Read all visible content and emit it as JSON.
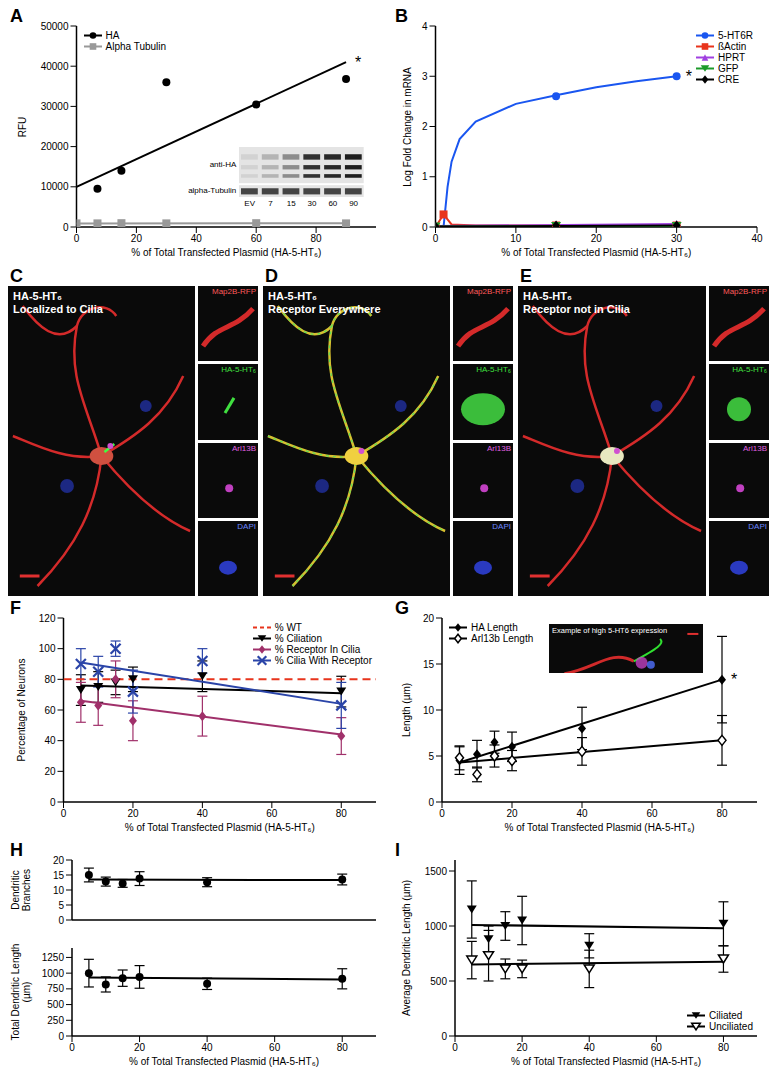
{
  "chart_data": [
    {
      "panel": "A",
      "type": "scatter",
      "xlabel": "% of Total Transfected Plasmid (HA-5-HT₆)",
      "ylabel": "RFU",
      "xlim": [
        0,
        100
      ],
      "xticks": [
        0,
        20,
        40,
        60,
        80
      ],
      "ylim": [
        0,
        50000
      ],
      "yticks": [
        0,
        10000,
        20000,
        30000,
        40000,
        50000
      ],
      "legend": "upper left",
      "series": [
        {
          "name": "HA",
          "color": "#000000",
          "marker": "circle",
          "x": [
            7,
            15,
            30,
            60,
            90
          ],
          "values": [
            9500,
            14000,
            36000,
            30500,
            36800
          ],
          "fit": {
            "x": [
              0,
              90
            ],
            "values": [
              10000,
              41000
            ]
          }
        },
        {
          "name": "Alpha Tubulin",
          "color": "#999999",
          "marker": "square",
          "x": [
            0,
            7,
            15,
            30,
            60,
            90
          ],
          "values": [
            900,
            900,
            950,
            900,
            950,
            900
          ],
          "fit": {
            "x": [
              0,
              90
            ],
            "values": [
              900,
              920
            ]
          }
        }
      ],
      "annotations": [
        {
          "text": "*",
          "x": 90,
          "y": 41000
        }
      ],
      "inset": {
        "type": "image",
        "rows": [
          "anti-HA",
          "alpha-Tubulin"
        ],
        "lanes": [
          "EV",
          "7",
          "15",
          "30",
          "60",
          "90"
        ]
      }
    },
    {
      "panel": "B",
      "type": "scatter",
      "xlabel": "% of Total Transfected Plasmid (HA-5-HT₆)",
      "ylabel": "Log Fold Change in mRNA",
      "xlim": [
        0,
        40
      ],
      "xticks": [
        0,
        10,
        20,
        30,
        40
      ],
      "ylim": [
        0,
        4
      ],
      "yticks": [
        0,
        1,
        2,
        3,
        4
      ],
      "legend": "upper right",
      "series": [
        {
          "name": "5-HT6R",
          "color": "#1a56f0",
          "marker": "circle",
          "x": [
            15,
            30
          ],
          "values": [
            2.6,
            3.0
          ],
          "fit": {
            "x": [
              1,
              1.5,
              2,
              3,
              5,
              10,
              15,
              20,
              25,
              30
            ],
            "values": [
              0,
              0.8,
              1.3,
              1.75,
              2.1,
              2.45,
              2.62,
              2.78,
              2.9,
              3.0
            ]
          }
        },
        {
          "name": "ßActin",
          "color": "#e8341c",
          "marker": "square",
          "x": [
            0,
            1,
            15,
            30
          ],
          "values": [
            0,
            0.25,
            0.03,
            0.03
          ],
          "fit": {
            "x": [
              0,
              1,
              2,
              5,
              30
            ],
            "values": [
              0,
              0.25,
              0.05,
              0.03,
              0.03
            ]
          }
        },
        {
          "name": "HPRT",
          "color": "#a040e0",
          "marker": "triangle",
          "x": [
            0,
            15,
            30
          ],
          "values": [
            0.02,
            0.05,
            0.06
          ],
          "fit": {
            "x": [
              0,
              30
            ],
            "values": [
              0.02,
              0.06
            ]
          }
        },
        {
          "name": "GFP",
          "color": "#1c9a2a",
          "marker": "triangle_down",
          "x": [
            0,
            15,
            30
          ],
          "values": [
            0.01,
            0.02,
            0.02
          ],
          "fit": {
            "x": [
              0,
              30
            ],
            "values": [
              0.01,
              0.02
            ]
          }
        },
        {
          "name": "CRE",
          "color": "#000000",
          "marker": "diamond",
          "x": [
            0,
            15,
            30
          ],
          "values": [
            0.01,
            0.03,
            0.03
          ],
          "fit": {
            "x": [
              0,
              30
            ],
            "values": [
              0.01,
              0.03
            ]
          }
        }
      ],
      "annotations": [
        {
          "text": "*",
          "x": 30,
          "y": 3.0
        }
      ]
    },
    {
      "panel": "C",
      "type": "image",
      "title": [
        "HA-5-HT₆",
        "Localized to Cilia"
      ],
      "channels": [
        "Map2B-RFP",
        "HA-5-HT₆",
        "Arl13B",
        "DAPI"
      ]
    },
    {
      "panel": "D",
      "type": "image",
      "title": [
        "HA-5-HT₆",
        "Receptor Everywhere"
      ],
      "channels": [
        "Map2B-RFP",
        "HA-5-HT₆",
        "Arl13B",
        "DAPI"
      ]
    },
    {
      "panel": "E",
      "type": "image",
      "title": [
        "HA-5-HT₆",
        "Receptor not in Cilia"
      ],
      "channels": [
        "Map2B-RFP",
        "HA-5-HT₆",
        "Arl13B",
        "DAPI"
      ]
    },
    {
      "panel": "F",
      "type": "scatter",
      "xlabel": "% of Total Transfected Plasmid (HA-5-HT₆)",
      "ylabel": "Percentage of Neurons",
      "xlim": [
        0,
        90
      ],
      "xticks": [
        0,
        20,
        40,
        60,
        80
      ],
      "ylim": [
        0,
        120
      ],
      "yticks": [
        0,
        20,
        40,
        60,
        80,
        100,
        120
      ],
      "legend": "upper right",
      "series": [
        {
          "name": "% WT",
          "color": "#e8341c",
          "marker": "none",
          "line_style": "dashed",
          "fit": {
            "x": [
              0,
              90
            ],
            "values": [
              80,
              80
            ]
          }
        },
        {
          "name": "% Ciliation",
          "color": "#000000",
          "marker": "triangle_down",
          "x": [
            5,
            10,
            15,
            20,
            40,
            80
          ],
          "values": [
            73,
            75,
            78,
            80,
            82,
            72
          ],
          "errors": [
            10,
            10,
            8,
            8,
            10,
            10
          ],
          "fit": {
            "x": [
              5,
              80
            ],
            "values": [
              76,
              71
            ]
          }
        },
        {
          "name": "% Receptor In Cilia",
          "color": "#a0306a",
          "marker": "diamond",
          "x": [
            5,
            10,
            15,
            20,
            40,
            80
          ],
          "values": [
            65,
            63,
            80,
            53,
            56,
            43
          ],
          "errors": [
            13,
            13,
            12,
            13,
            13,
            12
          ],
          "fit": {
            "x": [
              5,
              80
            ],
            "values": [
              66,
              44
            ]
          }
        },
        {
          "name": "% Cilia With Receptor",
          "color": "#2a44a8",
          "marker": "x",
          "x": [
            5,
            10,
            15,
            20,
            40,
            80
          ],
          "values": [
            90,
            85,
            100,
            72,
            92,
            63
          ],
          "errors": [
            10,
            10,
            5,
            14,
            8,
            15
          ],
          "fit": {
            "x": [
              5,
              80
            ],
            "values": [
              91,
              64
            ]
          }
        }
      ]
    },
    {
      "panel": "G",
      "type": "scatter",
      "xlabel": "% of Total Transfected Plasmid (HA-5-HT₆)",
      "ylabel": "Length (µm)",
      "xlim": [
        0,
        90
      ],
      "xticks": [
        0,
        20,
        40,
        60,
        80
      ],
      "ylim": [
        0,
        20
      ],
      "yticks": [
        0,
        5,
        10,
        15,
        20
      ],
      "legend": "upper left",
      "series": [
        {
          "name": "HA Length",
          "color": "#000000",
          "marker": "diamond",
          "x": [
            5,
            10,
            15,
            20,
            40,
            80
          ],
          "values": [
            4.5,
            5.2,
            6.5,
            6.0,
            8.0,
            13.3
          ],
          "errors": [
            1.5,
            1.5,
            1.2,
            1.6,
            2.3,
            4.7
          ],
          "fit": {
            "x": [
              5,
              80
            ],
            "values": [
              4.3,
              13.3
            ]
          }
        },
        {
          "name": "Arl13b Length",
          "color": "#000000",
          "marker": "diamond_open",
          "x": [
            5,
            10,
            15,
            20,
            40,
            80
          ],
          "values": [
            4.8,
            3.0,
            5.0,
            4.5,
            5.5,
            6.7
          ],
          "errors": [
            1.3,
            0.8,
            1.2,
            1.1,
            1.5,
            2.7
          ],
          "fit": {
            "x": [
              5,
              80
            ],
            "values": [
              4.3,
              6.7
            ]
          }
        }
      ],
      "annotations": [
        {
          "text": "*",
          "x": 80,
          "y": 13.3
        }
      ],
      "inset": {
        "type": "image",
        "text": "Example of high 5-HT6 expression"
      }
    },
    {
      "panel": "H",
      "type": "panels",
      "xlabel": "% of Total Transfected Plasmid (HA-5-HT₆)",
      "xlim": [
        0,
        90
      ],
      "xticks": [
        0,
        20,
        40,
        60,
        80
      ],
      "charts": [
        {
          "type": "scatter",
          "ylabel": "Dendritic Branches",
          "ylim": [
            0,
            20
          ],
          "yticks": [
            0,
            5,
            10,
            15,
            20
          ],
          "tick_labels": "y",
          "series": [
            {
              "color": "#000000",
              "marker": "circle",
              "x": [
                5,
                10,
                15,
                20,
                40,
                80
              ],
              "values": [
                15,
                12.8,
                12.2,
                13.8,
                12.6,
                13.5
              ],
              "errors": [
                2.3,
                1.5,
                1.3,
                2.3,
                1.5,
                1.8
              ],
              "fit": {
                "x": [
                  5,
                  80
                ],
                "values": [
                  13.5,
                  13.3
                ]
              }
            }
          ]
        },
        {
          "type": "scatter",
          "ylabel": "Total Dendritic Length (µm)",
          "ylim": [
            0,
            1400
          ],
          "yticks": [
            0,
            250,
            500,
            750,
            1000,
            1250
          ],
          "series": [
            {
              "color": "#000000",
              "marker": "circle",
              "x": [
                5,
                10,
                15,
                20,
                40,
                80
              ],
              "values": [
                1000,
                820,
                920,
                940,
                830,
                910
              ],
              "errors": [
                220,
                120,
                130,
                180,
                90,
                160
              ],
              "fit": {
                "x": [
                  5,
                  80
                ],
                "values": [
                  930,
                  900
                ]
              }
            }
          ]
        }
      ]
    },
    {
      "panel": "I",
      "type": "scatter",
      "xlabel": "% of Total Transfected Plasmid (HA-5-HT₆)",
      "ylabel": "Average Dendritic Length (µm)",
      "xlim": [
        0,
        90
      ],
      "xticks": [
        0,
        20,
        40,
        60,
        80
      ],
      "ylim": [
        0,
        1600
      ],
      "yticks": [
        0,
        500,
        1000,
        1500
      ],
      "legend": "lower right",
      "series": [
        {
          "name": "Ciliated",
          "color": "#000000",
          "marker": "triangle_down",
          "x": [
            5,
            10,
            15,
            20,
            40,
            80
          ],
          "values": [
            1150,
            880,
            1000,
            1050,
            820,
            1020
          ],
          "errors": [
            260,
            120,
            130,
            220,
            110,
            200
          ],
          "fit": {
            "x": [
              5,
              80
            ],
            "values": [
              1010,
              980
            ]
          }
        },
        {
          "name": "Unciliated",
          "color": "#000000",
          "marker": "triangle_down_open",
          "x": [
            5,
            10,
            15,
            20,
            40,
            80
          ],
          "values": [
            690,
            730,
            610,
            610,
            610,
            700
          ],
          "errors": [
            170,
            230,
            90,
            80,
            170,
            120
          ],
          "fit": {
            "x": [
              5,
              80
            ],
            "values": [
              650,
              675
            ]
          }
        }
      ]
    }
  ]
}
